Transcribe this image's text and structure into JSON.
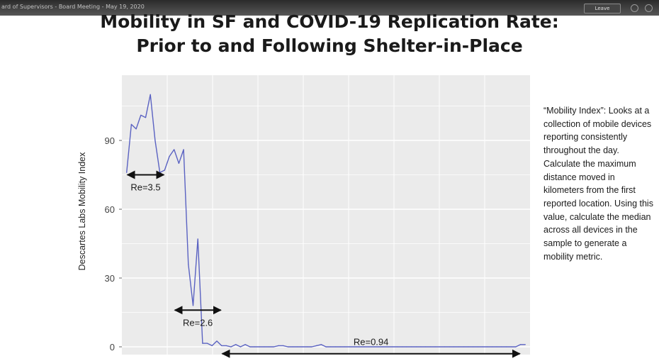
{
  "window": {
    "title": "ard of Supervisors - Board Meeting - May 19, 2020",
    "leave_label": "Leave"
  },
  "slide": {
    "title_line1": "Mobility in SF and COVID-19 Replication Rate:",
    "title_line2": "Prior to and Following Shelter-in-Place",
    "note": "“Mobility Index”: Looks at a collection of mobile devices reporting consistently throughout the day. Calculate the maximum distance moved in kilometers from the first reported location. Using this value, calculate the median across all devices in the sample to generate a mobility metric."
  },
  "chart_data": {
    "type": "line",
    "ylabel": "Descartes Labs Mobility Index",
    "xlabel": "",
    "ylim": [
      0,
      120
    ],
    "yticks": [
      0,
      30,
      60,
      90
    ],
    "grid": true,
    "line_color": "#5a62c2",
    "background": "#ebebeb",
    "series": [
      {
        "x": [
          1,
          2,
          3,
          4,
          5,
          6,
          7,
          8,
          9,
          10,
          11,
          12,
          13,
          14,
          15,
          16,
          17,
          18,
          19,
          20,
          21,
          22,
          23,
          24,
          25,
          26,
          27,
          28,
          29,
          30,
          31,
          32,
          33,
          34,
          35,
          36,
          37,
          38,
          39,
          40,
          41,
          42,
          43,
          44,
          45,
          46,
          47,
          48,
          49,
          50,
          51,
          52,
          53,
          54,
          55,
          56,
          57,
          58,
          59,
          60,
          61,
          62,
          63,
          64,
          65,
          66,
          67,
          68,
          69,
          70,
          71,
          72,
          73,
          74,
          75,
          76,
          77,
          78,
          79,
          80,
          81,
          82,
          83,
          84,
          85
        ],
        "values": [
          76,
          97,
          95,
          101,
          100,
          110,
          90,
          76,
          77,
          83,
          86,
          80,
          86,
          36,
          18,
          47,
          1.5,
          1.5,
          0.5,
          2.5,
          0.5,
          0.5,
          0,
          1,
          0,
          1,
          0,
          0,
          0,
          0,
          0,
          0,
          0.5,
          0.5,
          0,
          0,
          0,
          0,
          0,
          0,
          0.5,
          1,
          0,
          0,
          0,
          0,
          0,
          0,
          0,
          0,
          0,
          0,
          0,
          0,
          0,
          0,
          0,
          0,
          0,
          0,
          0,
          0,
          0,
          0,
          0,
          0,
          0,
          0,
          0,
          0,
          0,
          0,
          0,
          0,
          0,
          0,
          0,
          0,
          0,
          0,
          0,
          0,
          0,
          1,
          1
        ]
      }
    ],
    "annotations": [
      {
        "label": "Re=3.5",
        "x_start": 1,
        "x_end": 9,
        "y": 75
      },
      {
        "label": "Re=2.6",
        "x_start": 11,
        "x_end": 21,
        "y": 16
      },
      {
        "label": "Re=0.94",
        "x_start": 21,
        "x_end": 84,
        "y": -3
      }
    ]
  }
}
